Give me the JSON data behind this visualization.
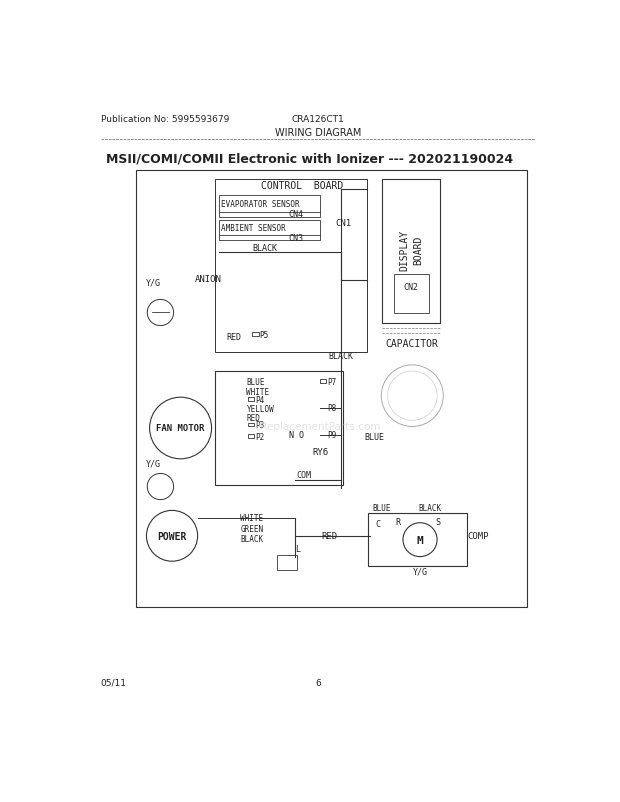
{
  "page_title": "WIRING DIAGRAM",
  "pub_no": "Publication No: 5995593679",
  "model": "CRA126CT1",
  "diagram_title": "MSII/COMI/COMII Electronic with Ionizer --- 202021190024",
  "footer_left": "05/11",
  "footer_center": "6",
  "bg_color": "#ffffff",
  "text_color": "#333333",
  "watermark": "eReplacementParts.com"
}
